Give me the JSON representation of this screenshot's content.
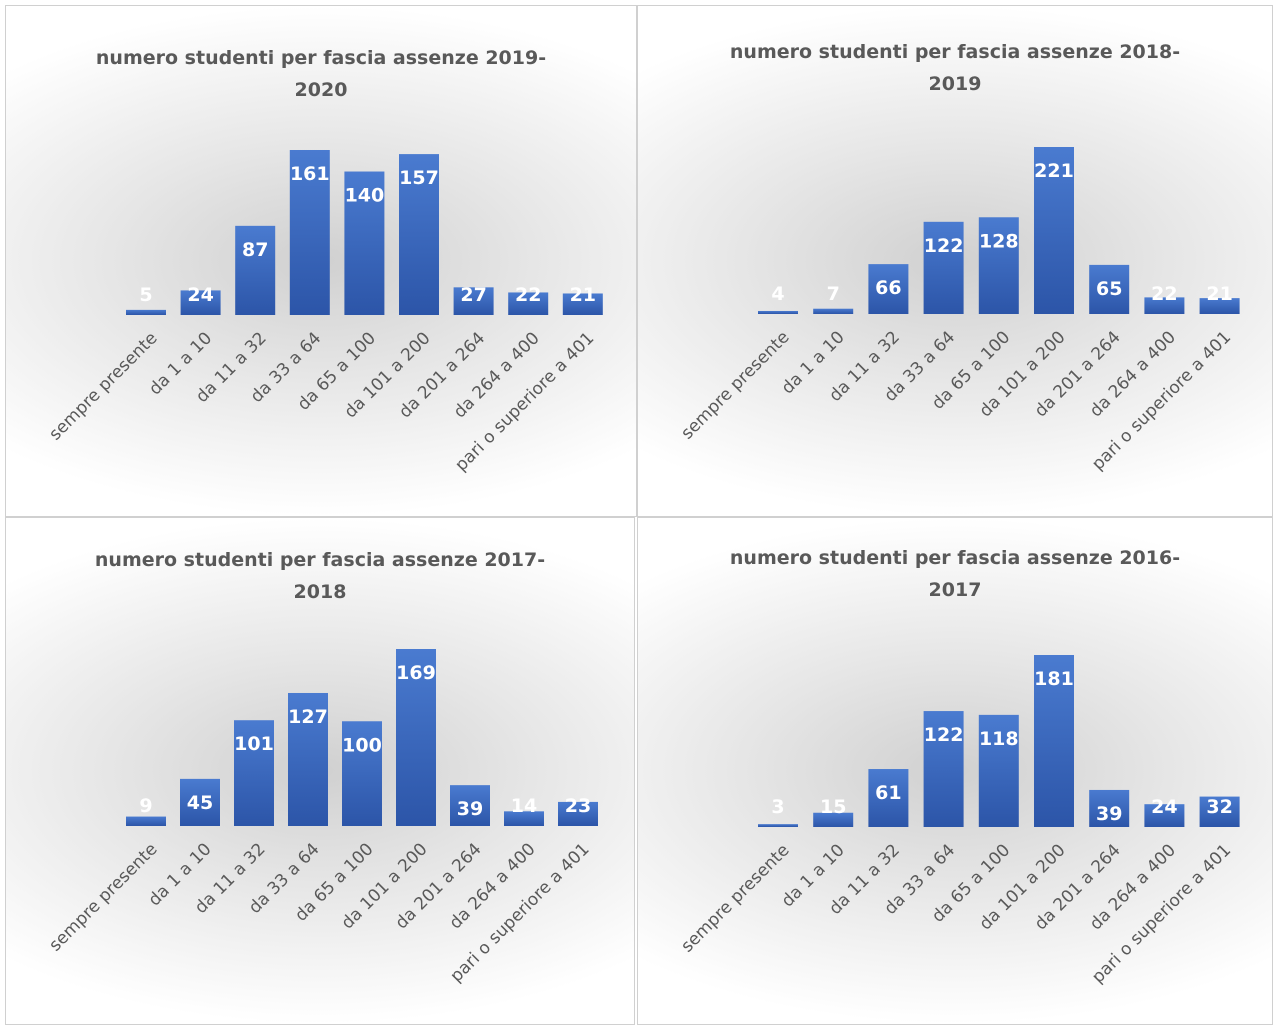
{
  "colors": {
    "bar_top": "#4a7bd0",
    "bar_bottom": "#2c55a8",
    "label": "#ffffff",
    "tick": "#595959",
    "title": "#595959"
  },
  "chart_data": [
    {
      "type": "bar",
      "title": "numero studenti per fascia assenze 2019-2020",
      "title_lines": [
        "numero studenti per fascia assenze 2019-",
        "2020"
      ],
      "categories": [
        "sempre presente",
        "da 1 a 10",
        "da 11 a 32",
        "da 33 a 64",
        "da 65 a 100",
        "da 101 a 200",
        "da 201 a 264",
        "da 264 a 400",
        "pari o superiore a 401"
      ],
      "values": [
        5,
        24,
        87,
        161,
        140,
        157,
        27,
        22,
        21
      ],
      "data_labels": true,
      "legend": "none",
      "grid": false
    },
    {
      "type": "bar",
      "title": "numero studenti per fascia assenze 2018-2019",
      "title_lines": [
        "numero studenti per fascia assenze 2018-",
        "2019"
      ],
      "categories": [
        "sempre presente",
        "da 1 a 10",
        "da 11 a 32",
        "da 33 a 64",
        "da 65 a 100",
        "da 101 a 200",
        "da 201 a 264",
        "da 264 a 400",
        "pari o superiore a 401"
      ],
      "values": [
        4,
        7,
        66,
        122,
        128,
        221,
        65,
        22,
        21
      ],
      "data_labels": true,
      "legend": "none",
      "grid": false
    },
    {
      "type": "bar",
      "title": "numero studenti per fascia assenze 2017-2018",
      "title_lines": [
        "numero studenti per fascia assenze 2017-",
        "2018"
      ],
      "categories": [
        "sempre presente",
        "da 1 a 10",
        "da 11 a 32",
        "da 33 a 64",
        "da 65 a 100",
        "da 101 a 200",
        "da 201 a 264",
        "da 264 a 400",
        "pari o superiore a 401"
      ],
      "values": [
        9,
        45,
        101,
        127,
        100,
        169,
        39,
        14,
        23
      ],
      "data_labels": true,
      "legend": "none",
      "grid": false
    },
    {
      "type": "bar",
      "title": "numero studenti per fascia assenze 2016-2017",
      "title_lines": [
        "numero studenti per fascia assenze 2016-",
        "2017"
      ],
      "categories": [
        "sempre presente",
        "da 1 a 10",
        "da 11 a 32",
        "da 33 a 64",
        "da 65 a 100",
        "da 101 a 200",
        "da 201 a 264",
        "da 264 a 400",
        "pari o superiore a 401"
      ],
      "values": [
        3,
        15,
        61,
        122,
        118,
        181,
        39,
        24,
        32
      ],
      "data_labels": true,
      "legend": "none",
      "grid": false
    }
  ]
}
